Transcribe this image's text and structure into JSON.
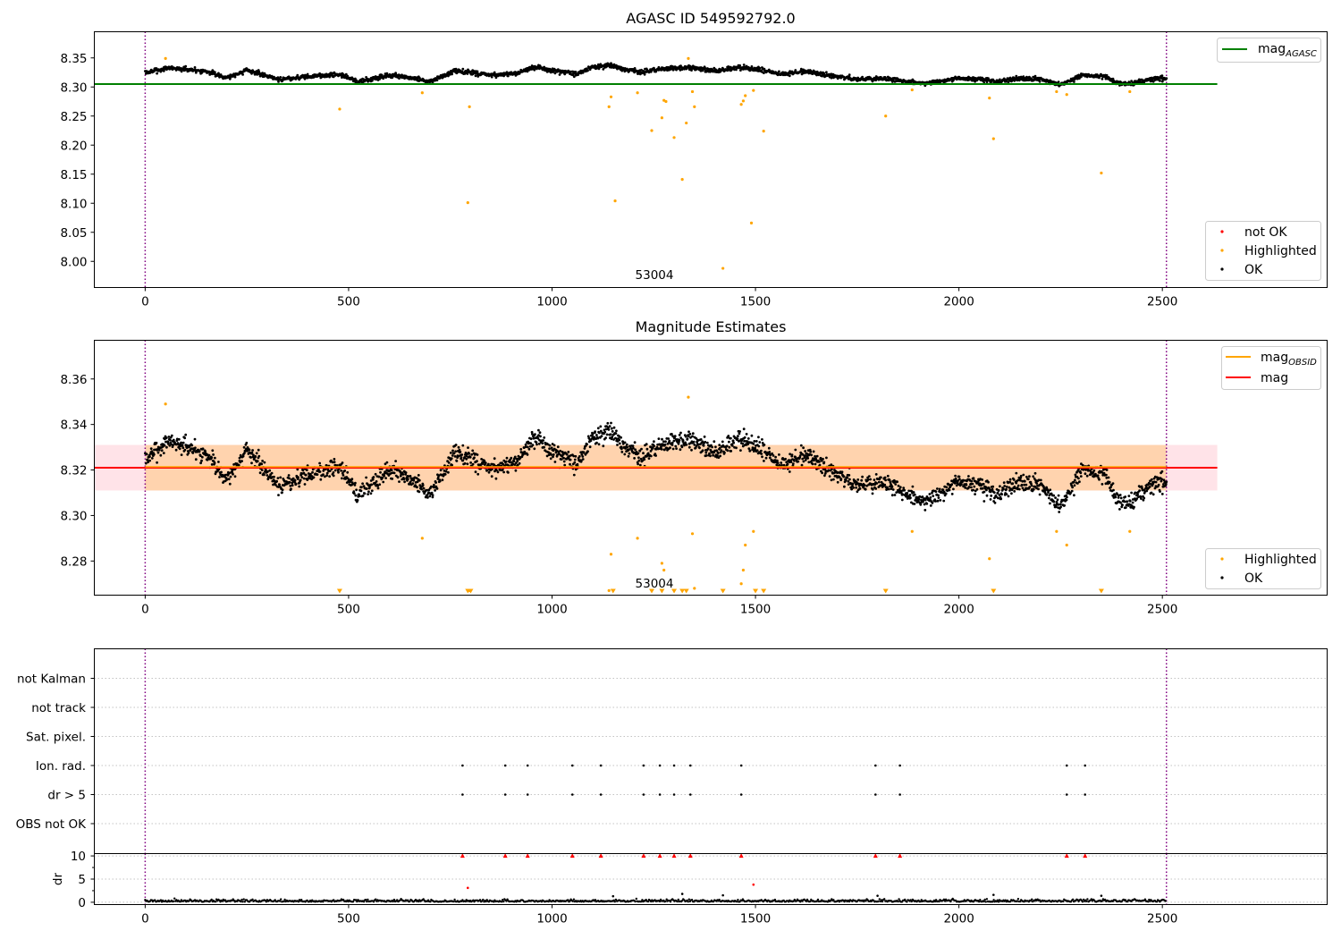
{
  "chart_data": [
    {
      "type": "scatter",
      "title": "AGASC ID 549592792.0",
      "xlabel": "",
      "ylabel": "",
      "xlim": [
        -125,
        2905
      ],
      "ylim": [
        7.955,
        8.395
      ],
      "xticks": [
        0,
        500,
        1000,
        1500,
        2000,
        2500
      ],
      "yticks": [
        8.0,
        8.05,
        8.1,
        8.15,
        8.2,
        8.25,
        8.3,
        8.35
      ],
      "annotation": "53004",
      "vlines": [
        0,
        2510
      ],
      "hline": {
        "name": "mag_AGASC",
        "y": 8.305,
        "x_range": [
          -125,
          2635
        ],
        "color": "#008000"
      },
      "legend_lines": [
        {
          "name": "mag",
          "subscript": "AGASC",
          "color": "#008000"
        }
      ],
      "legend_points": [
        {
          "name": "not OK",
          "color": "#ff0000"
        },
        {
          "name": "Highlighted",
          "color": "#ffa500"
        },
        {
          "name": "OK",
          "color": "#000000"
        }
      ],
      "series": [
        {
          "name": "OK",
          "color": "#000000",
          "trend": {
            "x": [
              0,
              60,
              150,
              200,
              250,
              330,
              400,
              480,
              520,
              600,
              650,
              700,
              760,
              800,
              850,
              900,
              960,
              1000,
              1060,
              1100,
              1140,
              1180,
              1220,
              1260,
              1300,
              1350,
              1400,
              1460,
              1500,
              1560,
              1620,
              1700,
              1750,
              1800,
              1850,
              1900,
              1950,
              2000,
              2050,
              2100,
              2150,
              2200,
              2250,
              2300,
              2350,
              2400,
              2430,
              2480,
              2510
            ],
            "y": [
              8.325,
              8.333,
              8.327,
              8.316,
              8.329,
              8.313,
              8.318,
              8.322,
              8.309,
              8.32,
              8.316,
              8.309,
              8.327,
              8.325,
              8.32,
              8.322,
              8.334,
              8.328,
              8.322,
              8.335,
              8.337,
              8.33,
              8.325,
              8.33,
              8.333,
              8.332,
              8.328,
              8.334,
              8.331,
              8.322,
              8.327,
              8.318,
              8.313,
              8.315,
              8.312,
              8.306,
              8.309,
              8.315,
              8.313,
              8.309,
              8.315,
              8.312,
              8.304,
              8.32,
              8.319,
              8.305,
              8.307,
              8.315,
              8.315
            ]
          },
          "noise": 0.005
        },
        {
          "name": "Highlighted",
          "color": "#ffa500",
          "points": [
            [
              50,
              8.349
            ],
            [
              478,
              8.262
            ],
            [
              681,
              8.29
            ],
            [
              793,
              8.101
            ],
            [
              797,
              8.266
            ],
            [
              1140,
              8.266
            ],
            [
              1145,
              8.283
            ],
            [
              1155,
              8.104
            ],
            [
              1210,
              8.29
            ],
            [
              1245,
              8.225
            ],
            [
              1270,
              8.247
            ],
            [
              1275,
              8.277
            ],
            [
              1280,
              8.275
            ],
            [
              1300,
              8.213
            ],
            [
              1320,
              8.141
            ],
            [
              1330,
              8.238
            ],
            [
              1335,
              8.349
            ],
            [
              1345,
              8.292
            ],
            [
              1350,
              8.266
            ],
            [
              1420,
              7.988
            ],
            [
              1465,
              8.27
            ],
            [
              1470,
              8.276
            ],
            [
              1475,
              8.285
            ],
            [
              1490,
              8.066
            ],
            [
              1495,
              8.294
            ],
            [
              1520,
              8.224
            ],
            [
              1820,
              8.25
            ],
            [
              1885,
              8.295
            ],
            [
              2075,
              8.281
            ],
            [
              2085,
              8.211
            ],
            [
              2240,
              8.292
            ],
            [
              2265,
              8.287
            ],
            [
              2350,
              8.152
            ],
            [
              2420,
              8.292
            ]
          ]
        }
      ]
    },
    {
      "type": "scatter",
      "title": "Magnitude Estimates",
      "xlabel": "",
      "ylabel": "",
      "xlim": [
        -125,
        2905
      ],
      "ylim": [
        8.265,
        8.377
      ],
      "xticks": [
        0,
        500,
        1000,
        1500,
        2000,
        2500
      ],
      "yticks": [
        8.28,
        8.3,
        8.32,
        8.34,
        8.36
      ],
      "annotation": "53004",
      "vlines": [
        0,
        2510
      ],
      "mag": 8.321,
      "mag_band": [
        8.311,
        8.331
      ],
      "obsid_band": [
        8.311,
        8.331
      ],
      "legend_lines": [
        {
          "name": "mag",
          "subscript": "OBSID",
          "color": "#ffa500"
        },
        {
          "name": "mag",
          "subscript": "",
          "color": "#ff0000"
        }
      ],
      "legend_points": [
        {
          "name": "Highlighted",
          "color": "#ffa500"
        },
        {
          "name": "OK",
          "color": "#000000"
        }
      ],
      "offscale_markers_x": [
        478,
        793,
        800,
        1150,
        1245,
        1270,
        1300,
        1320,
        1330,
        1420,
        1500,
        1520,
        1820,
        2085,
        2350
      ],
      "series": [
        {
          "name": "OK",
          "color": "#000000",
          "trend": {
            "x": [
              0,
              60,
              150,
              200,
              250,
              330,
              400,
              480,
              520,
              600,
              650,
              700,
              760,
              800,
              850,
              900,
              960,
              1000,
              1060,
              1100,
              1140,
              1180,
              1220,
              1260,
              1300,
              1350,
              1400,
              1460,
              1500,
              1560,
              1620,
              1700,
              1750,
              1800,
              1850,
              1900,
              1950,
              2000,
              2050,
              2100,
              2150,
              2200,
              2250,
              2300,
              2350,
              2400,
              2430,
              2480,
              2510
            ],
            "y": [
              8.325,
              8.333,
              8.327,
              8.316,
              8.329,
              8.313,
              8.318,
              8.322,
              8.309,
              8.32,
              8.316,
              8.309,
              8.327,
              8.325,
              8.32,
              8.322,
              8.334,
              8.328,
              8.322,
              8.335,
              8.337,
              8.33,
              8.325,
              8.33,
              8.333,
              8.332,
              8.328,
              8.334,
              8.331,
              8.322,
              8.327,
              8.318,
              8.313,
              8.315,
              8.312,
              8.306,
              8.309,
              8.315,
              8.313,
              8.309,
              8.315,
              8.312,
              8.304,
              8.32,
              8.319,
              8.305,
              8.307,
              8.315,
              8.315
            ]
          },
          "noise": 0.005
        },
        {
          "name": "Highlighted",
          "color": "#ffa500",
          "points": [
            [
              50,
              8.349
            ],
            [
              681,
              8.29
            ],
            [
              797,
              8.267
            ],
            [
              1140,
              8.267
            ],
            [
              1145,
              8.283
            ],
            [
              1210,
              8.29
            ],
            [
              1270,
              8.279
            ],
            [
              1275,
              8.276
            ],
            [
              1335,
              8.352
            ],
            [
              1345,
              8.292
            ],
            [
              1350,
              8.268
            ],
            [
              1465,
              8.27
            ],
            [
              1470,
              8.276
            ],
            [
              1475,
              8.287
            ],
            [
              1495,
              8.293
            ],
            [
              1885,
              8.293
            ],
            [
              2075,
              8.281
            ],
            [
              2240,
              8.293
            ],
            [
              2265,
              8.287
            ],
            [
              2420,
              8.293
            ]
          ]
        }
      ]
    },
    {
      "type": "scatter",
      "title": "",
      "xlim": [
        -125,
        2905
      ],
      "xticks": [
        0,
        500,
        1000,
        1500,
        2000,
        2500
      ],
      "vlines": [
        0,
        2510
      ],
      "category_rows": [
        "not Kalman",
        "not track",
        "Sat. pixel.",
        "Ion. rad.",
        "dr > 5",
        "OBS not OK"
      ],
      "flag_points": {
        "Ion. rad.": [
          780,
          885,
          940,
          1050,
          1120,
          1225,
          1265,
          1300,
          1340,
          1465,
          1795,
          1855,
          2265,
          2310
        ],
        "dr > 5": [
          780,
          885,
          940,
          1050,
          1120,
          1225,
          1265,
          1300,
          1340,
          1465,
          1795,
          1855,
          2265,
          2310
        ]
      },
      "dr": {
        "ylabel": "dr",
        "ylim": [
          -0.5,
          10.5
        ],
        "yticks": [
          0,
          5,
          10
        ],
        "baseline_noise": 0.6,
        "clipped_markers_x": [
          780,
          885,
          940,
          1050,
          1120,
          1225,
          1265,
          1300,
          1340,
          1465,
          1795,
          1855,
          2265,
          2310
        ],
        "outliers": [
          [
            793,
            3.1
          ],
          [
            1495,
            3.8
          ],
          [
            1320,
            1.8
          ],
          [
            2085,
            1.6
          ],
          [
            1420,
            1.5
          ],
          [
            1150,
            1.3
          ],
          [
            2350,
            1.4
          ],
          [
            1800,
            1.4
          ]
        ]
      }
    }
  ]
}
